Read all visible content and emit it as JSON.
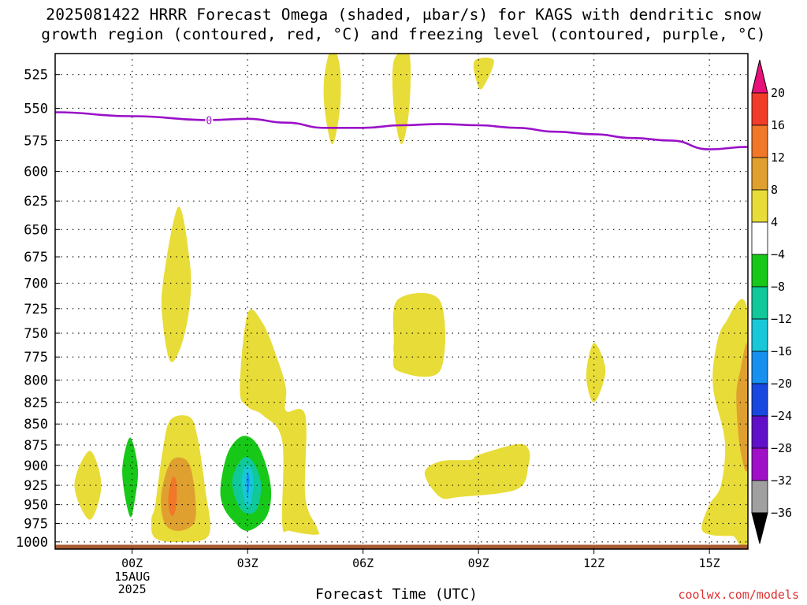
{
  "title": {
    "line1": "2025081422 HRRR Forecast Omega (shaded, μbar/s) for KAGS with dendritic snow",
    "line2": "growth region (contoured, red, °C) and freezing level (contoured, purple, °C)"
  },
  "credit": "coolwx.com/models",
  "chart_data": {
    "type": "heatmap",
    "title": "2025081422 HRRR Forecast Omega (shaded, μbar/s) for KAGS with dendritic snow growth region (contoured, red, °C) and freezing level (contoured, purple, °C)",
    "xlabel": "Forecast Time (UTC)",
    "ylabel": "",
    "x_unit": "hours relative to 00Z 15AUG 2025",
    "xlim": [
      -2,
      16
    ],
    "ylim": [
      1010,
      510
    ],
    "y_scale": "log-pressure (inverted)",
    "x_ticks": [
      {
        "value": 0,
        "label": "00Z",
        "sub1": "15AUG",
        "sub2": "2025"
      },
      {
        "value": 3,
        "label": "03Z"
      },
      {
        "value": 6,
        "label": "06Z"
      },
      {
        "value": 9,
        "label": "09Z"
      },
      {
        "value": 12,
        "label": "12Z"
      },
      {
        "value": 15,
        "label": "15Z"
      }
    ],
    "y_ticks": [
      525,
      550,
      575,
      600,
      625,
      650,
      675,
      700,
      725,
      750,
      775,
      800,
      825,
      850,
      875,
      900,
      925,
      950,
      975,
      1000
    ],
    "grid": true,
    "colorbar": {
      "labels": [
        "20",
        "16",
        "12",
        "8",
        "4",
        "-4",
        "-8",
        "-12",
        "-16",
        "-20",
        "-24",
        "-28",
        "-32",
        "-36"
      ],
      "colors": [
        "#e8107a",
        "#f03c28",
        "#f07828",
        "#e0a030",
        "#e8dc38",
        "#ffffff",
        "#18c818",
        "#10c89a",
        "#18c8d8",
        "#1890f0",
        "#1848e0",
        "#6010c8",
        "#a010c8",
        "#a0a0a0",
        "#000000"
      ]
    },
    "freezing_level": {
      "color": "#9a10c8",
      "label": "0",
      "points": [
        [
          -2,
          553
        ],
        [
          0,
          556
        ],
        [
          2,
          559
        ],
        [
          3,
          558
        ],
        [
          4,
          561
        ],
        [
          5,
          565
        ],
        [
          6,
          565
        ],
        [
          7,
          563
        ],
        [
          8,
          562
        ],
        [
          9,
          563
        ],
        [
          10,
          565
        ],
        [
          11,
          568
        ],
        [
          12,
          570
        ],
        [
          13,
          573
        ],
        [
          14,
          575
        ],
        [
          15,
          582
        ],
        [
          16,
          580
        ]
      ]
    },
    "terrain": {
      "color": "#a85a30",
      "pressure": 1012
    },
    "omega_regions": [
      {
        "value": 4,
        "color": "#e8dc38",
        "points": [
          [
            -1.5,
            925
          ],
          [
            -1.1,
            882
          ],
          [
            -0.8,
            925
          ],
          [
            -1.1,
            970
          ]
        ]
      },
      {
        "value": -4,
        "color": "#18c818",
        "points": [
          [
            -0.25,
            900
          ],
          [
            -0.05,
            866
          ],
          [
            0.15,
            905
          ],
          [
            0.05,
            950
          ],
          [
            -0.05,
            966
          ],
          [
            -0.2,
            935
          ]
        ]
      },
      {
        "value": 4,
        "color": "#e8dc38",
        "points": [
          [
            0.8,
            700
          ],
          [
            1.2,
            630
          ],
          [
            1.5,
            680
          ],
          [
            1.5,
            720
          ],
          [
            1.3,
            760
          ],
          [
            1.0,
            780
          ],
          [
            0.8,
            740
          ]
        ]
      },
      {
        "value": 4,
        "color": "#e8dc38",
        "points": [
          [
            0.6,
            950
          ],
          [
            0.8,
            880
          ],
          [
            1.0,
            845
          ],
          [
            1.5,
            842
          ],
          [
            1.7,
            866
          ],
          [
            1.9,
            930
          ],
          [
            2.0,
            990
          ],
          [
            1.3,
            1000
          ],
          [
            0.6,
            995
          ],
          [
            0.5,
            970
          ]
        ]
      },
      {
        "value": 8,
        "color": "#e0a030",
        "points": [
          [
            0.75,
            940
          ],
          [
            0.95,
            900
          ],
          [
            1.2,
            890
          ],
          [
            1.5,
            900
          ],
          [
            1.65,
            945
          ],
          [
            1.6,
            975
          ],
          [
            1.2,
            985
          ],
          [
            0.85,
            975
          ]
        ]
      },
      {
        "value": 12,
        "color": "#f07828",
        "points": [
          [
            0.95,
            935
          ],
          [
            1.05,
            915
          ],
          [
            1.15,
            920
          ],
          [
            1.15,
            950
          ],
          [
            1.05,
            965
          ],
          [
            0.95,
            955
          ]
        ]
      },
      {
        "value": 4,
        "color": "#e8dc38",
        "points": [
          [
            2.8,
            810
          ],
          [
            3.0,
            730
          ],
          [
            3.4,
            740
          ],
          [
            3.8,
            780
          ],
          [
            4.0,
            810
          ],
          [
            4.0,
            835
          ],
          [
            4.5,
            840
          ],
          [
            4.5,
            940
          ],
          [
            4.8,
            980
          ],
          [
            4.8,
            990
          ],
          [
            4.1,
            985
          ],
          [
            3.9,
            975
          ],
          [
            3.9,
            870
          ],
          [
            3.4,
            840
          ],
          [
            3.0,
            830
          ]
        ]
      },
      {
        "value": -4,
        "color": "#18c818",
        "points": [
          [
            2.3,
            925
          ],
          [
            2.5,
            883
          ],
          [
            2.9,
            864
          ],
          [
            3.3,
            878
          ],
          [
            3.6,
            925
          ],
          [
            3.5,
            965
          ],
          [
            3.0,
            985
          ],
          [
            2.6,
            970
          ],
          [
            2.35,
            950
          ]
        ]
      },
      {
        "value": -8,
        "color": "#10c89a",
        "points": [
          [
            2.6,
            920
          ],
          [
            2.8,
            895
          ],
          [
            3.0,
            890
          ],
          [
            3.2,
            900
          ],
          [
            3.35,
            925
          ],
          [
            3.25,
            955
          ],
          [
            3.0,
            962
          ],
          [
            2.75,
            950
          ]
        ]
      },
      {
        "value": -12,
        "color": "#18c8d8",
        "points": [
          [
            2.85,
            915
          ],
          [
            3.0,
            900
          ],
          [
            3.15,
            915
          ],
          [
            3.1,
            945
          ],
          [
            3.0,
            952
          ],
          [
            2.9,
            940
          ]
        ]
      },
      {
        "value": -16,
        "color": "#1890f0",
        "points": [
          [
            2.97,
            920
          ],
          [
            3.0,
            908
          ],
          [
            3.05,
            920
          ],
          [
            3.0,
            940
          ]
        ]
      },
      {
        "value": 4,
        "color": "#e8dc38",
        "points": [
          [
            5.0,
            525
          ],
          [
            5.2,
            505
          ],
          [
            5.4,
            520
          ],
          [
            5.4,
            550
          ],
          [
            5.2,
            578
          ],
          [
            5.0,
            550
          ]
        ]
      },
      {
        "value": 4,
        "color": "#e8dc38",
        "points": [
          [
            6.8,
            515
          ],
          [
            7.2,
            510
          ],
          [
            7.2,
            550
          ],
          [
            7.0,
            578
          ],
          [
            6.8,
            550
          ]
        ]
      },
      {
        "value": 4,
        "color": "#e8dc38",
        "points": [
          [
            8.9,
            515
          ],
          [
            9.4,
            515
          ],
          [
            9.1,
            535
          ],
          [
            8.95,
            530
          ]
        ]
      },
      {
        "value": 4,
        "color": "#e8dc38",
        "points": [
          [
            6.8,
            760
          ],
          [
            6.9,
            716
          ],
          [
            8.0,
            717
          ],
          [
            8.0,
            790
          ],
          [
            6.9,
            790
          ],
          [
            6.8,
            770
          ]
        ]
      },
      {
        "value": 4,
        "color": "#e8dc38",
        "points": [
          [
            7.6,
            910
          ],
          [
            8.0,
            895
          ],
          [
            8.8,
            893
          ],
          [
            9.0,
            887
          ],
          [
            10.0,
            874
          ],
          [
            10.3,
            880
          ],
          [
            10.3,
            900
          ],
          [
            10.0,
            930
          ],
          [
            8.5,
            940
          ],
          [
            8.0,
            940
          ]
        ]
      },
      {
        "value": 4,
        "color": "#e8dc38",
        "points": [
          [
            11.8,
            795
          ],
          [
            12.0,
            760
          ],
          [
            12.3,
            790
          ],
          [
            12.0,
            825
          ]
        ]
      },
      {
        "value": 4,
        "color": "#e8dc38",
        "points": [
          [
            16.0,
            730
          ],
          [
            15.4,
            740
          ],
          [
            15.15,
            770
          ],
          [
            15.1,
            810
          ],
          [
            15.4,
            870
          ],
          [
            15.3,
            925
          ],
          [
            15.0,
            950
          ],
          [
            14.8,
            980
          ],
          [
            15.0,
            990
          ],
          [
            15.6,
            992
          ],
          [
            16.0,
            990
          ]
        ]
      },
      {
        "value": 8,
        "color": "#e0a030",
        "points": [
          [
            16.0,
            765
          ],
          [
            15.8,
            790
          ],
          [
            15.7,
            820
          ],
          [
            15.8,
            880
          ],
          [
            16.0,
            900
          ]
        ]
      }
    ]
  }
}
